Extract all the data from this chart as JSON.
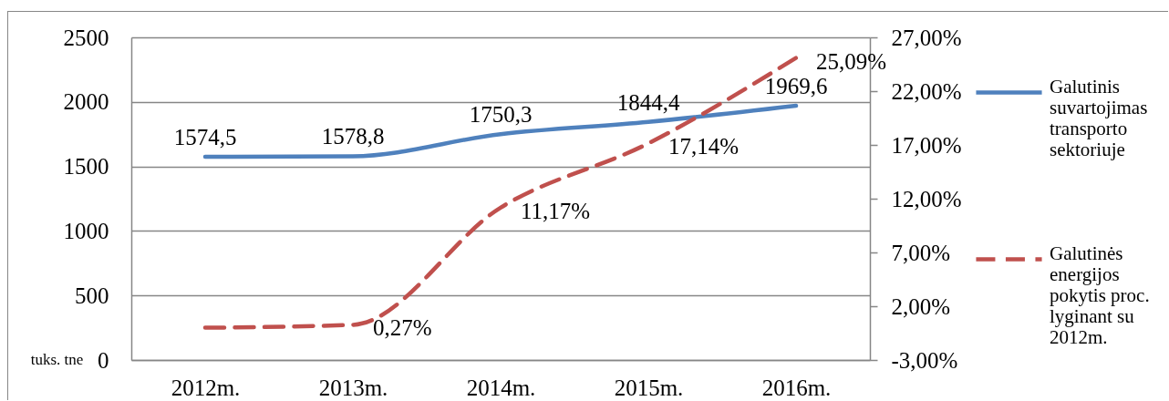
{
  "chart_data": {
    "type": "line",
    "ylabel": "tuks. tne",
    "categories": [
      "2012m.",
      "2013m.",
      "2014m.",
      "2015m.",
      "2016m."
    ],
    "series": [
      {
        "name": "Galutinis suvartojimas transporto sektoriuje",
        "color": "#4f81bd",
        "line_style": "solid",
        "values": [
          1574.5,
          1578.8,
          1750.3,
          1844.4,
          1969.6
        ],
        "value_labels": [
          "1574,5",
          "1578,8",
          "1750,3",
          "1844,4",
          "1969,6"
        ]
      },
      {
        "name": "Galutinės energijos pokytis proc. lyginant su 2012m.",
        "color": "#c0504d",
        "line_style": "dashed",
        "axis": "y2",
        "values": [
          0,
          0.27,
          11.17,
          17.14,
          25.09
        ],
        "value_labels": [
          null,
          "0,27%",
          "11,17%",
          "17,14%",
          "25,09%"
        ]
      }
    ],
    "ylim": [
      0,
      2500
    ],
    "yticks": [
      0,
      500,
      1000,
      1500,
      2000,
      2500
    ],
    "y2lim": [
      -3,
      27
    ],
    "y2ticks": [
      {
        "value": -3,
        "label": "-3,00%"
      },
      {
        "value": 2,
        "label": "2,00%"
      },
      {
        "value": 7,
        "label": "7,00%"
      },
      {
        "value": 12,
        "label": "12,00%"
      },
      {
        "value": 17,
        "label": "17,00%"
      },
      {
        "value": 22,
        "label": "22,00%"
      },
      {
        "value": 27,
        "label": "27,00%"
      }
    ],
    "grid": "y",
    "legend": "right"
  }
}
